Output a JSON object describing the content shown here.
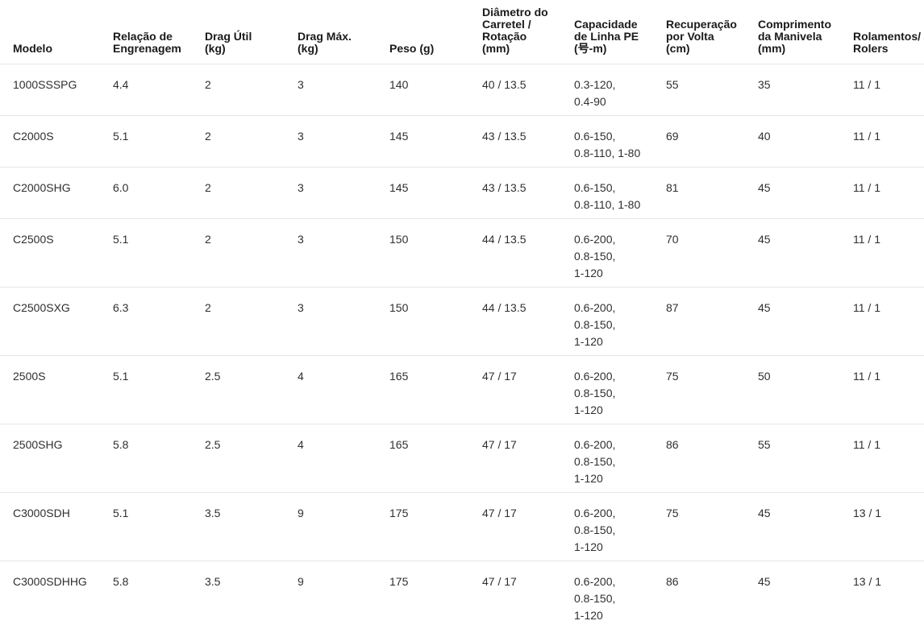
{
  "colors": {
    "background": "#ffffff",
    "border": "#e6e6e6",
    "header_text": "#1a1a1a",
    "body_text": "#2f2f2f"
  },
  "table": {
    "columns": [
      {
        "key": "modelo",
        "label": "Modelo"
      },
      {
        "key": "relacao_engrenagem",
        "label": "Relação de\nEngrenagem"
      },
      {
        "key": "drag_util_kg",
        "label": "Drag Útil\n(kg)"
      },
      {
        "key": "drag_max_kg",
        "label": "Drag Máx.\n(kg)"
      },
      {
        "key": "peso_g",
        "label": "Peso (g)"
      },
      {
        "key": "diametro_rotacao",
        "label": "Diâmetro do\nCarretel /\nRotação\n(mm)"
      },
      {
        "key": "capacidade_linha_pe",
        "label": "Capacidade\nde Linha PE\n(号-m)"
      },
      {
        "key": "recuperacao_volta",
        "label": "Recuperação\npor Volta\n(cm)"
      },
      {
        "key": "comprimento_manivela",
        "label": "Comprimento\nda Manivela\n(mm)"
      },
      {
        "key": "rolamentos",
        "label": "Rolamentos/\nRolers"
      }
    ],
    "rows": [
      {
        "modelo": "1000SSSPG",
        "relacao_engrenagem": "4.4",
        "drag_util_kg": "2",
        "drag_max_kg": "3",
        "peso_g": "140",
        "diametro_rotacao": "40 / 13.5",
        "capacidade_linha_pe": "0.3-120,\n0.4-90",
        "recuperacao_volta": "55",
        "comprimento_manivela": "35",
        "rolamentos": "11 / 1"
      },
      {
        "modelo": "C2000S",
        "relacao_engrenagem": "5.1",
        "drag_util_kg": "2",
        "drag_max_kg": "3",
        "peso_g": "145",
        "diametro_rotacao": "43 / 13.5",
        "capacidade_linha_pe": "0.6-150,\n0.8-110, 1-80",
        "recuperacao_volta": "69",
        "comprimento_manivela": "40",
        "rolamentos": "11 / 1"
      },
      {
        "modelo": "C2000SHG",
        "relacao_engrenagem": "6.0",
        "drag_util_kg": "2",
        "drag_max_kg": "3",
        "peso_g": "145",
        "diametro_rotacao": "43 / 13.5",
        "capacidade_linha_pe": "0.6-150,\n0.8-110, 1-80",
        "recuperacao_volta": "81",
        "comprimento_manivela": "45",
        "rolamentos": "11 / 1"
      },
      {
        "modelo": "C2500S",
        "relacao_engrenagem": "5.1",
        "drag_util_kg": "2",
        "drag_max_kg": "3",
        "peso_g": "150",
        "diametro_rotacao": "44 / 13.5",
        "capacidade_linha_pe": "0.6-200,\n0.8-150,\n1-120",
        "recuperacao_volta": "70",
        "comprimento_manivela": "45",
        "rolamentos": "11 / 1"
      },
      {
        "modelo": "C2500SXG",
        "relacao_engrenagem": "6.3",
        "drag_util_kg": "2",
        "drag_max_kg": "3",
        "peso_g": "150",
        "diametro_rotacao": "44 / 13.5",
        "capacidade_linha_pe": "0.6-200,\n0.8-150,\n1-120",
        "recuperacao_volta": "87",
        "comprimento_manivela": "45",
        "rolamentos": "11 / 1"
      },
      {
        "modelo": "2500S",
        "relacao_engrenagem": "5.1",
        "drag_util_kg": "2.5",
        "drag_max_kg": "4",
        "peso_g": "165",
        "diametro_rotacao": "47 / 17",
        "capacidade_linha_pe": "0.6-200,\n0.8-150,\n1-120",
        "recuperacao_volta": "75",
        "comprimento_manivela": "50",
        "rolamentos": "11 / 1"
      },
      {
        "modelo": "2500SHG",
        "relacao_engrenagem": "5.8",
        "drag_util_kg": "2.5",
        "drag_max_kg": "4",
        "peso_g": "165",
        "diametro_rotacao": "47 / 17",
        "capacidade_linha_pe": "0.6-200,\n0.8-150,\n1-120",
        "recuperacao_volta": "86",
        "comprimento_manivela": "55",
        "rolamentos": "11 / 1"
      },
      {
        "modelo": "C3000SDH",
        "relacao_engrenagem": "5.1",
        "drag_util_kg": "3.5",
        "drag_max_kg": "9",
        "peso_g": "175",
        "diametro_rotacao": "47 / 17",
        "capacidade_linha_pe": "0.6-200,\n0.8-150,\n1-120",
        "recuperacao_volta": "75",
        "comprimento_manivela": "45",
        "rolamentos": "13 / 1"
      },
      {
        "modelo": "C3000SDHHG",
        "relacao_engrenagem": "5.8",
        "drag_util_kg": "3.5",
        "drag_max_kg": "9",
        "peso_g": "175",
        "diametro_rotacao": "47 / 17",
        "capacidade_linha_pe": "0.6-200,\n0.8-150,\n1-120",
        "recuperacao_volta": "86",
        "comprimento_manivela": "45",
        "rolamentos": "13 / 1"
      }
    ]
  }
}
